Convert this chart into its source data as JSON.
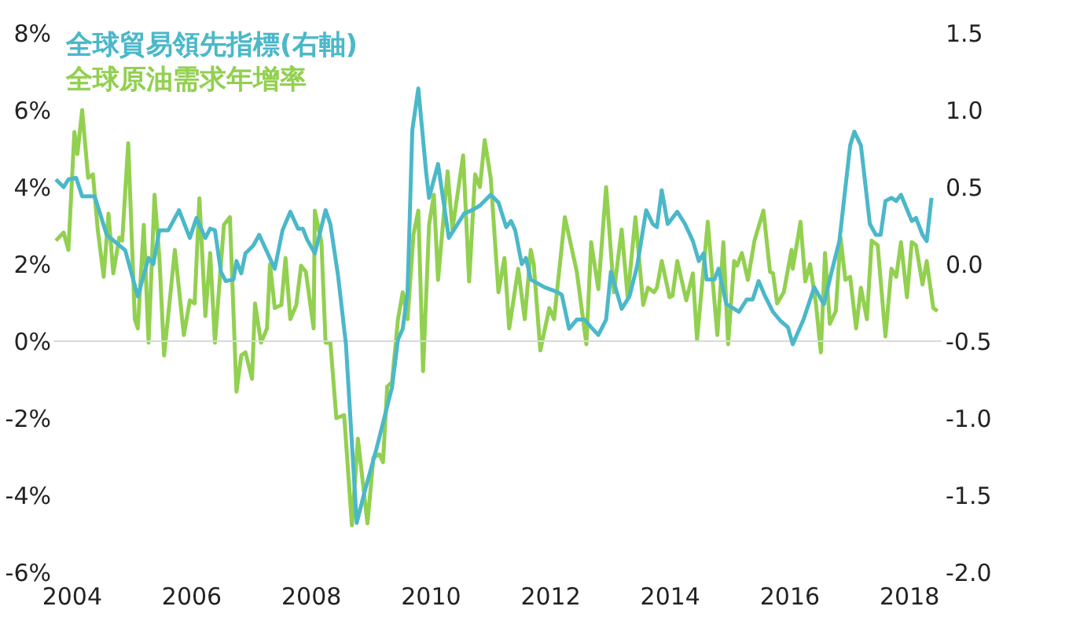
{
  "chart_data": {
    "type": "line",
    "xlim": [
      2003.7,
      2018.55
    ],
    "xticks": [
      2004,
      2006,
      2008,
      2010,
      2012,
      2014,
      2016,
      2018
    ],
    "ylim": [
      -6,
      8
    ],
    "yticks": [
      {
        "value": -6,
        "label": "-6%"
      },
      {
        "value": -4,
        "label": "-4%"
      },
      {
        "value": -2,
        "label": "-2%"
      },
      {
        "value": 0,
        "label": "0%"
      },
      {
        "value": 2,
        "label": "2%"
      },
      {
        "value": 4,
        "label": "4%"
      },
      {
        "value": 6,
        "label": "6%"
      },
      {
        "value": 8,
        "label": "8%"
      }
    ],
    "y2lim": [
      -2.0,
      1.5
    ],
    "y2ticks": [
      {
        "value": -2,
        "label": "-2.0"
      },
      {
        "value": -1.5,
        "label": "-1.5"
      },
      {
        "value": -1,
        "label": "-1.0"
      },
      {
        "value": -0.5,
        "label": "-0.5"
      },
      {
        "value": 0,
        "label": "0.0"
      },
      {
        "value": 0.5,
        "label": "0.5"
      },
      {
        "value": 1,
        "label": "1.0"
      },
      {
        "value": 1.5,
        "label": "1.5"
      }
    ],
    "grid": false,
    "legend": "top left",
    "marker": "none",
    "line_style": "solid",
    "ref_lines": [
      {
        "axis": "y",
        "value": 0,
        "color": "#d9d9d9"
      }
    ],
    "series": [
      {
        "name": "全球貿易領先指標(右軸)",
        "color": "#4bb8c9",
        "axis": "y2",
        "x": [
          2003.74,
          2003.87,
          2003.95,
          2004.08,
          2004.18,
          2004.39,
          2004.59,
          2004.9,
          2005.11,
          2005.29,
          2005.37,
          2005.47,
          2005.62,
          2005.8,
          2005.98,
          2006.09,
          2006.24,
          2006.32,
          2006.4,
          2006.5,
          2006.58,
          2006.71,
          2006.76,
          2006.84,
          2006.91,
          2007.04,
          2007.14,
          2007.4,
          2007.53,
          2007.66,
          2007.79,
          2007.87,
          2007.94,
          2008.07,
          2008.25,
          2008.33,
          2008.46,
          2008.59,
          2008.77,
          2008.9,
          2009.1,
          2009.36,
          2009.46,
          2009.54,
          2009.62,
          2009.7,
          2009.8,
          2009.93,
          2009.98,
          2010.13,
          2010.31,
          2010.57,
          2010.7,
          2010.83,
          2011.01,
          2011.14,
          2011.27,
          2011.35,
          2011.42,
          2011.53,
          2011.6,
          2011.68,
          2011.91,
          2012.12,
          2012.2,
          2012.32,
          2012.45,
          2012.58,
          2012.69,
          2012.81,
          2012.94,
          2013.02,
          2013.2,
          2013.33,
          2013.46,
          2013.61,
          2013.72,
          2013.79,
          2013.87,
          2013.97,
          2014.13,
          2014.26,
          2014.39,
          2014.49,
          2014.57,
          2014.62,
          2014.75,
          2014.82,
          2014.95,
          2015.08,
          2015.16,
          2015.29,
          2015.39,
          2015.49,
          2015.6,
          2015.73,
          2015.86,
          2015.98,
          2016.06,
          2016.24,
          2016.42,
          2016.58,
          2016.71,
          2016.84,
          2017.02,
          2017.09,
          2017.2,
          2017.35,
          2017.45,
          2017.53,
          2017.61,
          2017.71,
          2017.79,
          2017.87,
          2018.05,
          2018.12,
          2018.23,
          2018.3,
          2018.38
        ],
        "values": [
          0.55,
          0.5,
          0.55,
          0.56,
          0.44,
          0.44,
          0.19,
          0.09,
          -0.21,
          0.04,
          0.0,
          0.22,
          0.22,
          0.35,
          0.17,
          0.3,
          0.17,
          0.23,
          0.22,
          -0.05,
          -0.11,
          -0.1,
          0.02,
          -0.06,
          0.07,
          0.12,
          0.19,
          -0.03,
          0.22,
          0.34,
          0.23,
          0.23,
          0.16,
          0.07,
          0.35,
          0.26,
          -0.08,
          -0.52,
          -1.68,
          -1.48,
          -1.2,
          -0.8,
          -0.49,
          -0.42,
          -0.18,
          0.87,
          1.14,
          0.6,
          0.43,
          0.65,
          0.17,
          0.33,
          0.35,
          0.38,
          0.45,
          0.4,
          0.24,
          0.28,
          0.22,
          0.0,
          0.04,
          -0.1,
          -0.15,
          -0.18,
          -0.2,
          -0.42,
          -0.36,
          -0.36,
          -0.41,
          -0.46,
          -0.36,
          -0.05,
          -0.29,
          -0.21,
          -0.01,
          0.35,
          0.26,
          0.24,
          0.48,
          0.26,
          0.34,
          0.26,
          0.15,
          0.02,
          0.07,
          -0.1,
          -0.1,
          -0.03,
          -0.26,
          -0.29,
          -0.31,
          -0.23,
          -0.23,
          -0.11,
          -0.21,
          -0.31,
          -0.37,
          -0.41,
          -0.52,
          -0.36,
          -0.15,
          -0.26,
          -0.05,
          0.15,
          0.77,
          0.86,
          0.77,
          0.26,
          0.19,
          0.19,
          0.41,
          0.43,
          0.41,
          0.45,
          0.28,
          0.3,
          0.19,
          0.15,
          0.43
        ]
      },
      {
        "name": "全球原油需求年增率",
        "color": "#92d050",
        "x": [
          2003.74,
          2003.87,
          2003.95,
          2004.05,
          2004.1,
          2004.18,
          2004.28,
          2004.36,
          2004.44,
          2004.54,
          2004.62,
          2004.7,
          2004.8,
          2004.85,
          2004.95,
          2005.06,
          2005.11,
          2005.21,
          2005.29,
          2005.39,
          2005.47,
          2005.55,
          2005.73,
          2005.88,
          2005.98,
          2006.06,
          2006.14,
          2006.24,
          2006.32,
          2006.4,
          2006.55,
          2006.65,
          2006.76,
          2006.84,
          2006.91,
          2007.02,
          2007.07,
          2007.17,
          2007.27,
          2007.32,
          2007.4,
          2007.51,
          2007.58,
          2007.66,
          2007.76,
          2007.84,
          2007.92,
          2008.05,
          2008.07,
          2008.18,
          2008.25,
          2008.33,
          2008.43,
          2008.56,
          2008.69,
          2008.79,
          2008.95,
          2009.05,
          2009.15,
          2009.21,
          2009.28,
          2009.36,
          2009.46,
          2009.54,
          2009.62,
          2009.72,
          2009.8,
          2009.88,
          2009.98,
          2010.06,
          2010.13,
          2010.29,
          2010.37,
          2010.55,
          2010.65,
          2010.75,
          2010.83,
          2010.91,
          2011.01,
          2011.14,
          2011.24,
          2011.32,
          2011.47,
          2011.58,
          2011.68,
          2011.73,
          2011.84,
          2011.99,
          2012.07,
          2012.25,
          2012.45,
          2012.61,
          2012.69,
          2012.81,
          2012.94,
          2013.07,
          2013.2,
          2013.3,
          2013.43,
          2013.56,
          2013.64,
          2013.74,
          2013.79,
          2013.87,
          2014.0,
          2014.05,
          2014.13,
          2014.28,
          2014.39,
          2014.46,
          2014.64,
          2014.72,
          2014.8,
          2014.9,
          2014.98,
          2015.08,
          2015.13,
          2015.21,
          2015.31,
          2015.42,
          2015.57,
          2015.68,
          2015.73,
          2015.8,
          2015.91,
          2016.04,
          2016.06,
          2016.19,
          2016.27,
          2016.35,
          2016.45,
          2016.53,
          2016.6,
          2016.68,
          2016.78,
          2016.86,
          2016.94,
          2017.02,
          2017.12,
          2017.2,
          2017.3,
          2017.38,
          2017.48,
          2017.61,
          2017.71,
          2017.79,
          2017.87,
          2017.97,
          2018.05,
          2018.12,
          2018.23,
          2018.3,
          2018.41,
          2018.48
        ],
        "values": [
          2.61,
          2.82,
          2.37,
          5.43,
          4.86,
          6.0,
          4.24,
          4.33,
          2.9,
          1.67,
          3.31,
          1.76,
          2.69,
          2.61,
          5.14,
          0.57,
          0.33,
          3.02,
          -0.04,
          3.8,
          2.2,
          -0.37,
          2.37,
          0.16,
          1.06,
          0.98,
          3.71,
          0.65,
          2.29,
          -0.04,
          3.02,
          3.22,
          -1.31,
          -0.37,
          -0.29,
          -0.98,
          0.98,
          -0.04,
          0.33,
          2.0,
          0.86,
          0.94,
          2.16,
          0.57,
          0.94,
          1.96,
          1.8,
          0.33,
          3.39,
          2.57,
          -0.04,
          -0.04,
          -2.0,
          -1.92,
          -4.78,
          -2.53,
          -4.73,
          -3.02,
          -2.94,
          -3.14,
          -1.18,
          -1.06,
          0.57,
          1.27,
          0.57,
          2.78,
          3.39,
          -0.78,
          3.02,
          3.8,
          1.59,
          4.41,
          2.9,
          4.82,
          1.55,
          4.33,
          4.0,
          5.22,
          4.24,
          1.27,
          2.16,
          0.33,
          1.88,
          0.57,
          2.37,
          2.0,
          -0.24,
          0.86,
          0.57,
          3.22,
          1.8,
          -0.08,
          2.57,
          1.35,
          4.0,
          1.27,
          2.9,
          1.14,
          3.22,
          0.94,
          1.39,
          1.27,
          1.39,
          2.08,
          1.14,
          1.18,
          2.08,
          1.06,
          1.76,
          0.04,
          3.1,
          1.59,
          0.16,
          2.57,
          -0.08,
          2.08,
          1.96,
          2.29,
          1.59,
          2.61,
          3.39,
          1.8,
          1.76,
          0.98,
          1.27,
          2.37,
          1.88,
          3.1,
          1.55,
          2.0,
          0.94,
          -0.29,
          2.29,
          0.45,
          0.78,
          2.69,
          1.59,
          1.67,
          0.33,
          1.39,
          0.57,
          2.61,
          2.49,
          0.12,
          1.88,
          1.67,
          2.57,
          1.14,
          2.57,
          2.49,
          1.47,
          2.08,
          0.86,
          0.78
        ]
      }
    ]
  }
}
